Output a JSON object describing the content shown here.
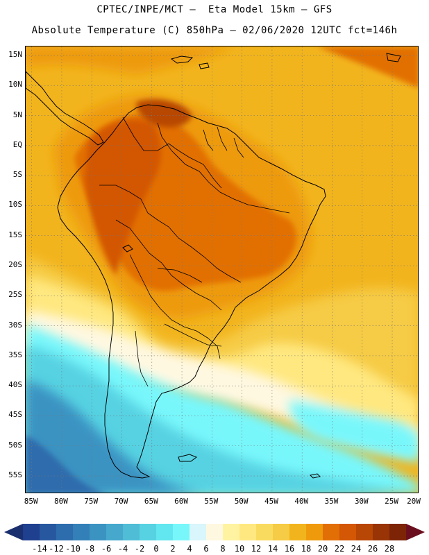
{
  "header": {
    "line1": "CPTEC/INPE/MCT –  Eta Model 15km – GFS",
    "line2": "Absolute Temperature (C) 850hPa – 02/06/2020 12UTC fct=146h"
  },
  "map": {
    "lat_labels": [
      "15N",
      "10N",
      "5N",
      "EQ",
      "5S",
      "10S",
      "15S",
      "20S",
      "25S",
      "30S",
      "35S",
      "40S",
      "45S",
      "50S",
      "55S"
    ],
    "lon_labels": [
      "85W",
      "80W",
      "75W",
      "70W",
      "65W",
      "60W",
      "55W",
      "50W",
      "45W",
      "40W",
      "35W",
      "30W",
      "25W",
      "20W"
    ],
    "lat_values": [
      15,
      10,
      5,
      0,
      -5,
      -10,
      -15,
      -20,
      -25,
      -30,
      -35,
      -40,
      -45,
      -50,
      -55
    ],
    "lon_values": [
      -85,
      -80,
      -75,
      -70,
      -65,
      -60,
      -55,
      -50,
      -45,
      -40,
      -35,
      -30,
      -25,
      -20
    ],
    "extent": {
      "lon": [
        -86,
        -20.5
      ],
      "lat": [
        -58,
        16.5
      ]
    }
  },
  "colorbar": {
    "labels": [
      "-14",
      "-12",
      "-10",
      "-8",
      "-6",
      "-4",
      "-2",
      "0",
      "2",
      "4",
      "6",
      "8",
      "10",
      "12",
      "14",
      "16",
      "18",
      "20",
      "22",
      "24",
      "26",
      "28"
    ],
    "colors": [
      "#1f3f8f",
      "#27589f",
      "#2d6cad",
      "#3380b8",
      "#3b93c2",
      "#45a8cc",
      "#4fbdd6",
      "#57d2e2",
      "#62e6ef",
      "#78f7fb",
      "#d8f6fb",
      "#fff8e1",
      "#fff3a2",
      "#ffe880",
      "#f9db5f",
      "#f6cb45",
      "#f2b41d",
      "#ee9a0c",
      "#e26f06",
      "#d35705",
      "#b84604",
      "#983405",
      "#7d2407"
    ],
    "low_arrow_color": "#1a2f6e",
    "high_arrow_color": "#6b0f1f"
  }
}
